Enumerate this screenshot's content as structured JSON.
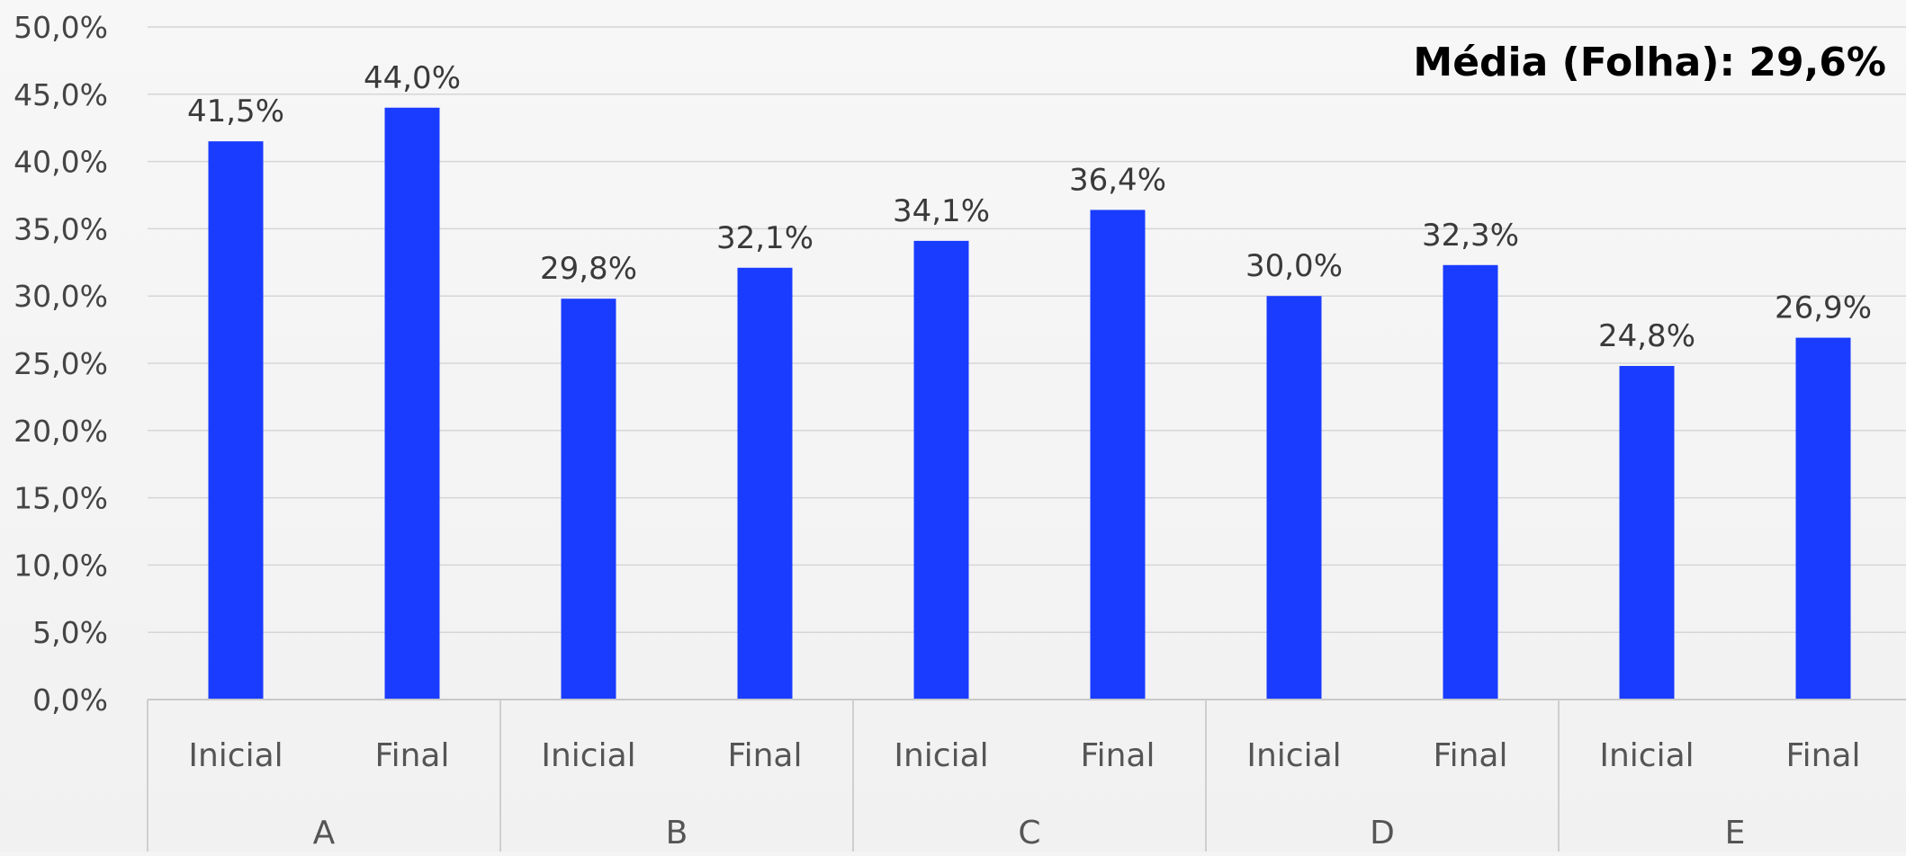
{
  "colors": {
    "bar": "#1a3cff"
  },
  "annotation": {
    "average_label": "Média (Folha): 29,6%"
  },
  "chart_data": {
    "type": "bar",
    "title": "",
    "xlabel": "",
    "ylabel": "",
    "ylim": [
      0,
      50
    ],
    "y_ticks": [
      {
        "value": 0,
        "label": "0,0%"
      },
      {
        "value": 5,
        "label": "5,0%"
      },
      {
        "value": 10,
        "label": "10,0%"
      },
      {
        "value": 15,
        "label": "15,0%"
      },
      {
        "value": 20,
        "label": "20,0%"
      },
      {
        "value": 25,
        "label": "25,0%"
      },
      {
        "value": 30,
        "label": "30,0%"
      },
      {
        "value": 35,
        "label": "35,0%"
      },
      {
        "value": 40,
        "label": "40,0%"
      },
      {
        "value": 45,
        "label": "45,0%"
      },
      {
        "value": 50,
        "label": "50,0%"
      }
    ],
    "grid": true,
    "legend": "none",
    "groups": [
      {
        "name": "A",
        "bars": [
          {
            "category": "Inicial",
            "value": 41.5,
            "label": "41,5%"
          },
          {
            "category": "Final",
            "value": 44.0,
            "label": "44,0%"
          }
        ]
      },
      {
        "name": "B",
        "bars": [
          {
            "category": "Inicial",
            "value": 29.8,
            "label": "29,8%"
          },
          {
            "category": "Final",
            "value": 32.1,
            "label": "32,1%"
          }
        ]
      },
      {
        "name": "C",
        "bars": [
          {
            "category": "Inicial",
            "value": 34.1,
            "label": "34,1%"
          },
          {
            "category": "Final",
            "value": 36.4,
            "label": "36,4%"
          }
        ]
      },
      {
        "name": "D",
        "bars": [
          {
            "category": "Inicial",
            "value": 30.0,
            "label": "30,0%"
          },
          {
            "category": "Final",
            "value": 32.3,
            "label": "32,3%"
          }
        ]
      },
      {
        "name": "E",
        "bars": [
          {
            "category": "Inicial",
            "value": 24.8,
            "label": "24,8%"
          },
          {
            "category": "Final",
            "value": 26.9,
            "label": "26,9%"
          }
        ]
      }
    ]
  }
}
